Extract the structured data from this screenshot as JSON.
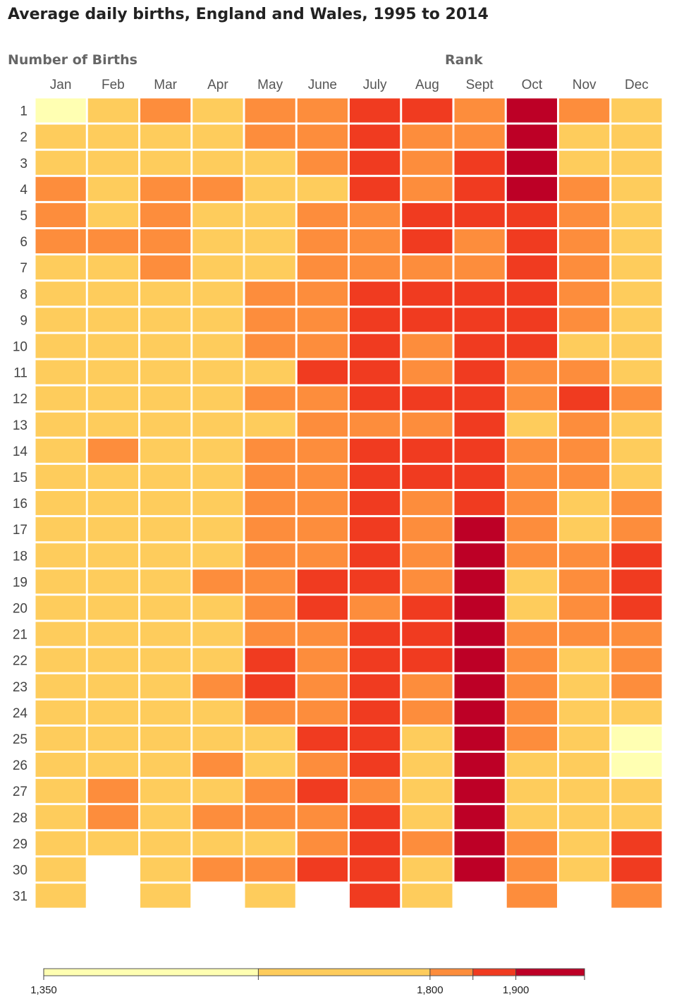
{
  "title": "Average daily births, England and Wales, 1995 to 2014",
  "legend_left": "Number of Births",
  "legend_right": "Rank",
  "chart_data": {
    "type": "heatmap",
    "title": "Average daily births, England and Wales, 1995 to 2014",
    "columns": [
      "Jan",
      "Feb",
      "Mar",
      "Apr",
      "May",
      "June",
      "July",
      "Aug",
      "Sept",
      "Oct",
      "Nov",
      "Dec"
    ],
    "rows": [
      "1",
      "2",
      "3",
      "4",
      "5",
      "6",
      "7",
      "8",
      "9",
      "10",
      "11",
      "12",
      "13",
      "14",
      "15",
      "16",
      "17",
      "18",
      "19",
      "20",
      "21",
      "22",
      "23",
      "24",
      "25",
      "26",
      "27",
      "28",
      "29",
      "30",
      "31"
    ],
    "value_scale": {
      "ticks": [
        1350,
        1800,
        1900
      ],
      "bands": [
        {
          "from": 1350,
          "to": 1600,
          "level": 0,
          "color": "#ffffb2"
        },
        {
          "from": 1600,
          "to": 1800,
          "level": 1,
          "color": "#fecc5c"
        },
        {
          "from": 1800,
          "to": 1850,
          "level": 2,
          "color": "#fd8d3c"
        },
        {
          "from": 1850,
          "to": 1900,
          "level": 3,
          "color": "#f03b20"
        },
        {
          "from": 1900,
          "to": 1980,
          "level": 4,
          "color": "#bd0026"
        }
      ]
    },
    "levels_by_month": [
      [
        0,
        1,
        1,
        2,
        2,
        2,
        1,
        1,
        1,
        1,
        1,
        1,
        1,
        1,
        1,
        1,
        1,
        1,
        1,
        1,
        1,
        1,
        1,
        1,
        1,
        1,
        1,
        1,
        1,
        1,
        1
      ],
      [
        1,
        1,
        1,
        1,
        1,
        2,
        1,
        1,
        1,
        1,
        1,
        1,
        1,
        2,
        1,
        1,
        1,
        1,
        1,
        1,
        1,
        1,
        1,
        1,
        1,
        1,
        2,
        2,
        1,
        null,
        null
      ],
      [
        2,
        1,
        1,
        2,
        2,
        2,
        2,
        1,
        1,
        1,
        1,
        1,
        1,
        1,
        1,
        1,
        1,
        1,
        1,
        1,
        1,
        1,
        1,
        1,
        1,
        1,
        1,
        1,
        1,
        1,
        1
      ],
      [
        1,
        1,
        1,
        2,
        1,
        1,
        1,
        1,
        1,
        1,
        1,
        1,
        1,
        1,
        1,
        1,
        1,
        1,
        2,
        1,
        1,
        1,
        2,
        1,
        1,
        2,
        1,
        2,
        1,
        2,
        null
      ],
      [
        2,
        2,
        1,
        1,
        1,
        1,
        1,
        2,
        2,
        2,
        1,
        2,
        1,
        2,
        2,
        2,
        2,
        2,
        2,
        2,
        2,
        3,
        3,
        2,
        1,
        1,
        2,
        2,
        1,
        2,
        1
      ],
      [
        2,
        2,
        2,
        1,
        2,
        2,
        2,
        2,
        2,
        2,
        3,
        2,
        2,
        2,
        2,
        2,
        2,
        2,
        3,
        3,
        2,
        2,
        2,
        2,
        3,
        2,
        3,
        2,
        2,
        3,
        null
      ],
      [
        3,
        3,
        3,
        3,
        2,
        2,
        2,
        3,
        3,
        3,
        3,
        3,
        2,
        3,
        3,
        3,
        3,
        3,
        3,
        2,
        3,
        3,
        3,
        3,
        3,
        3,
        2,
        3,
        3,
        3,
        3
      ],
      [
        3,
        2,
        2,
        2,
        3,
        3,
        2,
        3,
        3,
        2,
        2,
        3,
        2,
        3,
        3,
        2,
        2,
        2,
        2,
        3,
        3,
        3,
        2,
        2,
        1,
        1,
        1,
        1,
        2,
        1,
        1
      ],
      [
        2,
        2,
        3,
        3,
        3,
        2,
        2,
        3,
        3,
        3,
        3,
        3,
        3,
        3,
        3,
        3,
        4,
        4,
        4,
        4,
        4,
        4,
        4,
        4,
        4,
        4,
        4,
        4,
        4,
        4,
        null
      ],
      [
        4,
        4,
        4,
        4,
        3,
        3,
        3,
        3,
        3,
        3,
        2,
        2,
        1,
        2,
        2,
        2,
        2,
        2,
        1,
        1,
        2,
        2,
        2,
        2,
        2,
        1,
        1,
        1,
        2,
        2,
        2
      ],
      [
        2,
        1,
        1,
        2,
        2,
        2,
        2,
        2,
        2,
        1,
        2,
        3,
        2,
        2,
        2,
        1,
        1,
        2,
        2,
        2,
        2,
        1,
        1,
        1,
        1,
        1,
        1,
        1,
        1,
        1,
        null
      ],
      [
        1,
        1,
        1,
        1,
        1,
        1,
        1,
        1,
        1,
        1,
        1,
        2,
        1,
        1,
        1,
        2,
        2,
        3,
        3,
        3,
        2,
        2,
        2,
        1,
        0,
        0,
        1,
        1,
        3,
        3,
        2
      ]
    ]
  }
}
